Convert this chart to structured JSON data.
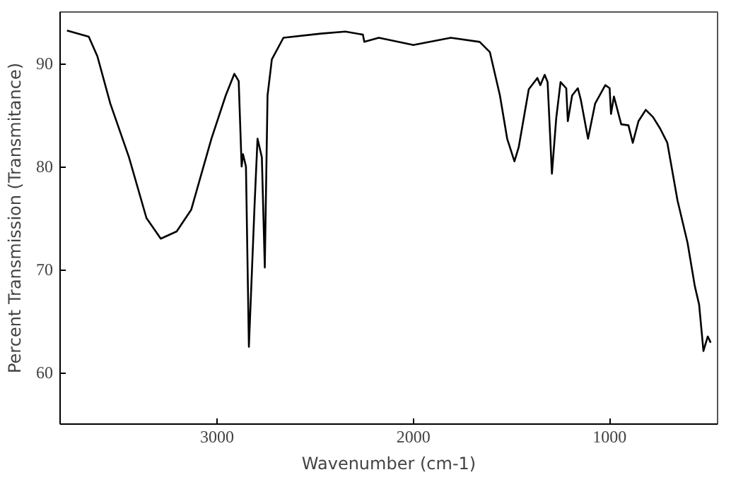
{
  "chart_data": {
    "type": "line",
    "xlabel": "Wavenumber (cm-1)",
    "ylabel": "Percent Transmission (Transmitance)",
    "xlim": [
      3800,
      450
    ],
    "ylim": [
      55,
      95
    ],
    "xticks": [
      3000,
      2000,
      1000
    ],
    "yticks": [
      60,
      70,
      80,
      90
    ],
    "grid": false,
    "series": [
      {
        "color": "#000000",
        "x": [
          3765,
          3654,
          3610,
          3544,
          3449,
          3360,
          3287,
          3206,
          3132,
          3029,
          2956,
          2912,
          2890,
          2875,
          2868,
          2853,
          2838,
          2809,
          2794,
          2772,
          2757,
          2743,
          2721,
          2662,
          2471,
          2346,
          2257,
          2250,
          2176,
          2000,
          1809,
          1662,
          1610,
          1559,
          1522,
          1485,
          1463,
          1412,
          1368,
          1353,
          1331,
          1316,
          1294,
          1272,
          1250,
          1221,
          1213,
          1191,
          1162,
          1147,
          1110,
          1074,
          1022,
          1000,
          993,
          978,
          941,
          904,
          882,
          853,
          816,
          779,
          743,
          706,
          654,
          603,
          566,
          544,
          522,
          500,
          485
        ],
        "values": [
          93.2,
          92.6,
          90.7,
          86.1,
          80.9,
          75.0,
          73.0,
          73.7,
          75.8,
          82.7,
          86.9,
          89.0,
          88.3,
          80.0,
          81.2,
          80.0,
          62.5,
          76.3,
          82.7,
          80.9,
          70.2,
          86.9,
          90.4,
          92.5,
          92.9,
          93.1,
          92.8,
          92.1,
          92.5,
          91.8,
          92.5,
          92.1,
          91.1,
          86.9,
          82.7,
          80.5,
          81.9,
          87.5,
          88.6,
          87.9,
          88.9,
          88.2,
          79.3,
          84.7,
          88.2,
          87.6,
          84.4,
          86.9,
          87.6,
          86.5,
          82.7,
          86.1,
          87.9,
          87.6,
          85.1,
          86.8,
          84.1,
          84.0,
          82.3,
          84.4,
          85.5,
          84.8,
          83.7,
          82.3,
          76.7,
          72.6,
          68.4,
          66.6,
          62.1,
          63.5,
          62.9
        ]
      }
    ]
  }
}
